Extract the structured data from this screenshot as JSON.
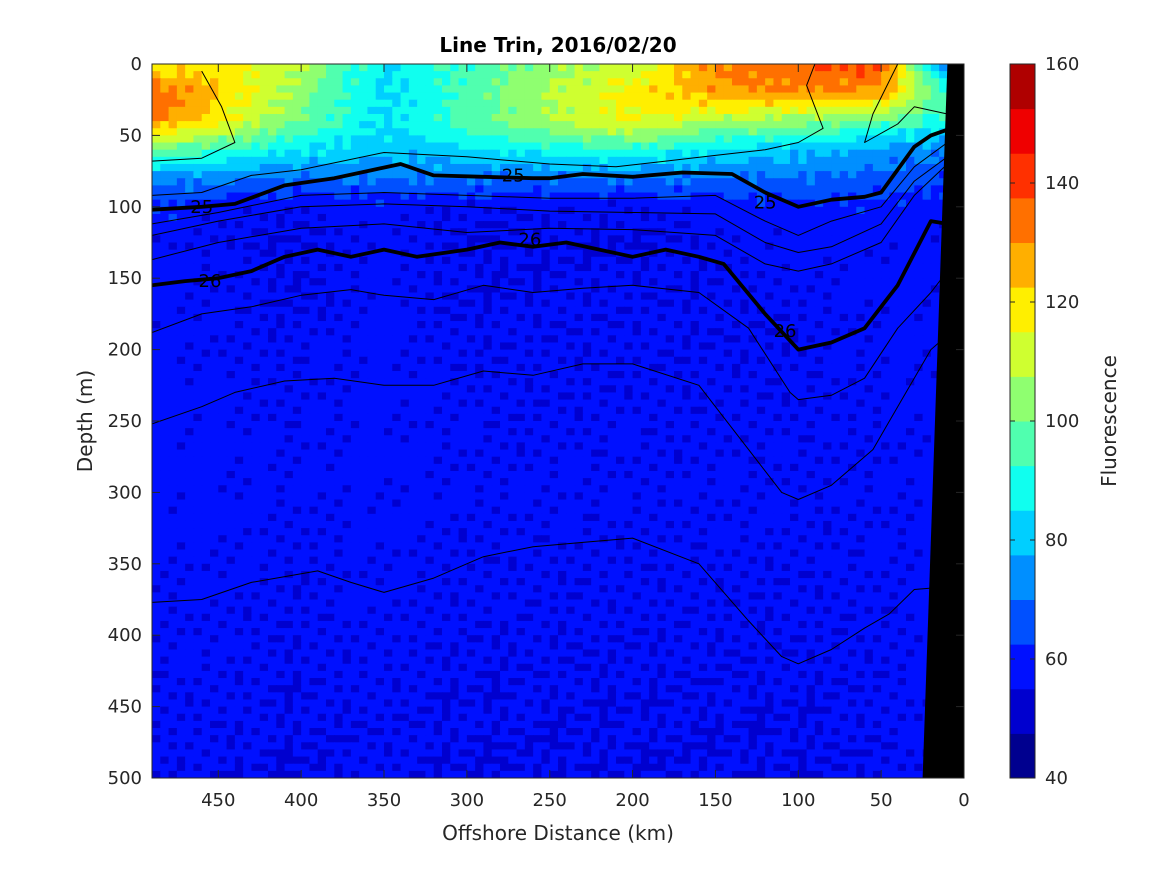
{
  "chart_data": {
    "type": "heatmap",
    "title": "Line Trin, 2016/02/20",
    "xlabel": "Offshore Distance (km)",
    "ylabel": "Depth (m)",
    "colorbar_label": "Fluorescence",
    "xlim": [
      490,
      0
    ],
    "ylim": [
      0,
      500
    ],
    "clim": [
      40,
      160
    ],
    "x_ticks": [
      "450",
      "400",
      "350",
      "300",
      "250",
      "200",
      "150",
      "100",
      "50",
      "0"
    ],
    "x_tick_values": [
      450,
      400,
      350,
      300,
      250,
      200,
      150,
      100,
      50,
      0
    ],
    "y_ticks": [
      "0",
      "50",
      "100",
      "150",
      "200",
      "250",
      "300",
      "350",
      "400",
      "450",
      "500"
    ],
    "y_tick_values": [
      0,
      50,
      100,
      150,
      200,
      250,
      300,
      350,
      400,
      450,
      500
    ],
    "colorbar_ticks": [
      "40",
      "60",
      "80",
      "100",
      "120",
      "140",
      "160"
    ],
    "colorbar_tick_values": [
      40,
      60,
      80,
      100,
      120,
      140,
      160
    ],
    "colormap": [
      "#00008f",
      "#0000cf",
      "#0010ff",
      "#0050ff",
      "#008fff",
      "#00cfff",
      "#10ffef",
      "#50ffaf",
      "#8fff70",
      "#cfff30",
      "#ffef00",
      "#ffaf00",
      "#ff7000",
      "#ff3000",
      "#ef0000",
      "#af0000"
    ],
    "x_grid": [
      490,
      450,
      400,
      350,
      300,
      250,
      200,
      150,
      100,
      50,
      10
    ],
    "depth_grid": [
      0,
      20,
      40,
      60,
      80,
      100,
      125,
      150,
      200,
      300,
      500
    ],
    "fluorescence": [
      [
        118,
        120,
        108,
        85,
        95,
        104,
        110,
        132,
        136,
        140,
        65
      ],
      [
        136,
        122,
        104,
        82,
        96,
        108,
        118,
        128,
        130,
        128,
        92
      ],
      [
        132,
        118,
        100,
        84,
        96,
        106,
        116,
        108,
        104,
        98,
        90
      ],
      [
        100,
        94,
        86,
        80,
        84,
        90,
        92,
        84,
        80,
        76,
        72
      ],
      [
        74,
        72,
        70,
        70,
        70,
        70,
        70,
        70,
        70,
        68,
        64
      ],
      [
        62,
        58,
        56,
        58,
        56,
        56,
        56,
        58,
        60,
        60,
        58
      ],
      [
        58,
        56,
        55,
        58,
        55,
        55,
        55,
        56,
        58,
        58,
        58
      ],
      [
        58,
        57,
        55,
        58,
        55,
        56,
        56,
        56,
        57,
        58,
        58
      ],
      [
        58,
        57,
        56,
        58,
        56,
        56,
        56,
        56,
        56,
        57,
        58
      ],
      [
        58,
        58,
        57,
        58,
        57,
        57,
        57,
        57,
        57,
        57,
        58
      ],
      [
        56,
        56,
        55,
        56,
        55,
        55,
        55,
        55,
        55,
        56,
        57
      ]
    ],
    "bottom_topography": [
      [
        10,
        0
      ],
      [
        25,
        500
      ],
      [
        0,
        500
      ],
      [
        0,
        0
      ]
    ],
    "isopycnals": [
      {
        "label": "25",
        "bold": true,
        "label_positions": [
          [
            460,
            100
          ],
          [
            272,
            78
          ],
          [
            120,
            97
          ]
        ],
        "points": [
          [
            490,
            102
          ],
          [
            460,
            100
          ],
          [
            440,
            98
          ],
          [
            410,
            85
          ],
          [
            380,
            80
          ],
          [
            360,
            75
          ],
          [
            340,
            70
          ],
          [
            320,
            78
          ],
          [
            290,
            79
          ],
          [
            260,
            80
          ],
          [
            250,
            80
          ],
          [
            230,
            77
          ],
          [
            200,
            79
          ],
          [
            170,
            76
          ],
          [
            140,
            77
          ],
          [
            120,
            90
          ],
          [
            100,
            100
          ],
          [
            80,
            95
          ],
          [
            60,
            93
          ],
          [
            50,
            90
          ],
          [
            30,
            58
          ],
          [
            20,
            50
          ],
          [
            10,
            46
          ]
        ]
      },
      {
        "label": "26",
        "bold": true,
        "label_positions": [
          [
            455,
            152
          ],
          [
            262,
            123
          ],
          [
            108,
            187
          ]
        ],
        "points": [
          [
            490,
            155
          ],
          [
            470,
            152
          ],
          [
            450,
            150
          ],
          [
            430,
            145
          ],
          [
            410,
            135
          ],
          [
            390,
            130
          ],
          [
            370,
            135
          ],
          [
            350,
            130
          ],
          [
            330,
            135
          ],
          [
            300,
            130
          ],
          [
            280,
            125
          ],
          [
            260,
            128
          ],
          [
            240,
            125
          ],
          [
            200,
            135
          ],
          [
            180,
            130
          ],
          [
            160,
            135
          ],
          [
            145,
            140
          ],
          [
            120,
            175
          ],
          [
            100,
            200
          ],
          [
            80,
            195
          ],
          [
            60,
            185
          ],
          [
            40,
            155
          ],
          [
            20,
            110
          ],
          [
            10,
            112
          ]
        ]
      },
      {
        "label": "",
        "bold": false,
        "points": [
          [
            490,
            68
          ],
          [
            460,
            66
          ],
          [
            440,
            55
          ],
          [
            448,
            30
          ],
          [
            460,
            5
          ]
        ]
      },
      {
        "label": "",
        "bold": false,
        "points": [
          [
            490,
            92
          ],
          [
            460,
            90
          ],
          [
            430,
            78
          ],
          [
            400,
            74
          ],
          [
            350,
            62
          ],
          [
            300,
            65
          ],
          [
            250,
            70
          ],
          [
            210,
            72
          ],
          [
            180,
            68
          ],
          [
            150,
            64
          ],
          [
            120,
            60
          ],
          [
            100,
            55
          ],
          [
            85,
            45
          ],
          [
            95,
            15
          ],
          [
            90,
            0
          ]
        ]
      },
      {
        "label": "",
        "bold": false,
        "points": [
          [
            40,
            0
          ],
          [
            55,
            35
          ],
          [
            60,
            55
          ],
          [
            40,
            42
          ],
          [
            30,
            30
          ],
          [
            10,
            35
          ]
        ]
      },
      {
        "label": "",
        "bold": false,
        "points": [
          [
            490,
            112
          ],
          [
            450,
            104
          ],
          [
            400,
            92
          ],
          [
            350,
            90
          ],
          [
            300,
            92
          ],
          [
            250,
            94
          ],
          [
            200,
            94
          ],
          [
            150,
            92
          ],
          [
            120,
            110
          ],
          [
            100,
            120
          ],
          [
            80,
            110
          ],
          [
            50,
            100
          ],
          [
            30,
            72
          ],
          [
            10,
            55
          ]
        ]
      },
      {
        "label": "",
        "bold": false,
        "points": [
          [
            490,
            120
          ],
          [
            450,
            110
          ],
          [
            400,
            100
          ],
          [
            350,
            98
          ],
          [
            300,
            100
          ],
          [
            250,
            103
          ],
          [
            200,
            104
          ],
          [
            150,
            105
          ],
          [
            120,
            125
          ],
          [
            100,
            132
          ],
          [
            80,
            128
          ],
          [
            50,
            112
          ],
          [
            30,
            82
          ],
          [
            10,
            65
          ]
        ]
      },
      {
        "label": "",
        "bold": false,
        "points": [
          [
            490,
            137
          ],
          [
            450,
            125
          ],
          [
            400,
            115
          ],
          [
            350,
            112
          ],
          [
            300,
            118
          ],
          [
            250,
            115
          ],
          [
            200,
            116
          ],
          [
            150,
            120
          ],
          [
            120,
            140
          ],
          [
            100,
            145
          ],
          [
            80,
            140
          ],
          [
            50,
            125
          ],
          [
            30,
            92
          ],
          [
            10,
            70
          ]
        ]
      },
      {
        "label": "",
        "bold": false,
        "points": [
          [
            490,
            188
          ],
          [
            460,
            175
          ],
          [
            430,
            170
          ],
          [
            400,
            162
          ],
          [
            370,
            158
          ],
          [
            350,
            162
          ],
          [
            320,
            165
          ],
          [
            290,
            155
          ],
          [
            260,
            160
          ],
          [
            230,
            157
          ],
          [
            200,
            155
          ],
          [
            160,
            160
          ],
          [
            130,
            185
          ],
          [
            105,
            230
          ],
          [
            100,
            235
          ],
          [
            80,
            232
          ],
          [
            60,
            220
          ],
          [
            40,
            185
          ],
          [
            20,
            160
          ],
          [
            10,
            145
          ]
        ]
      },
      {
        "label": "",
        "bold": false,
        "points": [
          [
            490,
            252
          ],
          [
            460,
            240
          ],
          [
            440,
            230
          ],
          [
            410,
            222
          ],
          [
            380,
            220
          ],
          [
            350,
            225
          ],
          [
            320,
            225
          ],
          [
            290,
            215
          ],
          [
            260,
            218
          ],
          [
            230,
            210
          ],
          [
            200,
            210
          ],
          [
            160,
            225
          ],
          [
            130,
            270
          ],
          [
            110,
            300
          ],
          [
            100,
            305
          ],
          [
            80,
            295
          ],
          [
            55,
            270
          ],
          [
            40,
            240
          ],
          [
            20,
            200
          ],
          [
            10,
            190
          ]
        ]
      },
      {
        "label": "",
        "bold": false,
        "points": [
          [
            490,
            377
          ],
          [
            460,
            375
          ],
          [
            430,
            363
          ],
          [
            390,
            355
          ],
          [
            370,
            363
          ],
          [
            350,
            370
          ],
          [
            320,
            360
          ],
          [
            290,
            345
          ],
          [
            260,
            338
          ],
          [
            230,
            335
          ],
          [
            200,
            332
          ],
          [
            160,
            350
          ],
          [
            130,
            390
          ],
          [
            110,
            415
          ],
          [
            100,
            420
          ],
          [
            80,
            410
          ],
          [
            60,
            395
          ],
          [
            45,
            385
          ],
          [
            30,
            368
          ],
          [
            20,
            367
          ]
        ]
      }
    ]
  }
}
